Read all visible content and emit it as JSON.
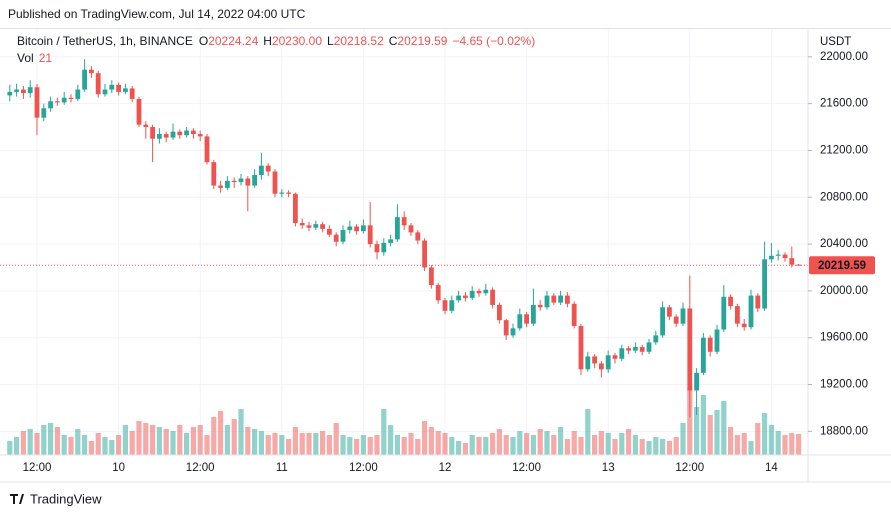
{
  "chart_data": {
    "type": "candlestick",
    "published": "Published on TradingView.com, Jul 14, 2022 04:00 UTC",
    "symbol": "Bitcoin / TetherUS, 1h, BINANCE",
    "legend": [
      {
        "key": "O",
        "text": "20224.24"
      },
      {
        "key": "H",
        "text": "20230.00"
      },
      {
        "key": "L",
        "text": "20218.52"
      },
      {
        "key": "C",
        "text": "20219.59"
      }
    ],
    "change": "−4.65 (−0.02%)",
    "volume_label": "Vol",
    "axis_unit": "USDT",
    "brand": "TradingView",
    "up_color": "#26a69a",
    "down_color": "#ef5350",
    "grid": true,
    "categories": [
      null,
      null,
      null,
      null,
      "12:00",
      null,
      null,
      null,
      null,
      null,
      null,
      null,
      null,
      null,
      null,
      null,
      "10",
      null,
      null,
      null,
      null,
      null,
      null,
      null,
      null,
      null,
      null,
      null,
      "12:00",
      null,
      null,
      null,
      null,
      null,
      null,
      null,
      null,
      null,
      null,
      null,
      "11",
      null,
      null,
      null,
      null,
      null,
      null,
      null,
      null,
      null,
      null,
      null,
      "12:00",
      null,
      null,
      null,
      null,
      null,
      null,
      null,
      null,
      null,
      null,
      null,
      "12",
      null,
      null,
      null,
      null,
      null,
      null,
      null,
      null,
      null,
      null,
      null,
      "12:00",
      null,
      null,
      null,
      null,
      null,
      null,
      null,
      null,
      null,
      null,
      null,
      "13",
      null,
      null,
      null,
      null,
      null,
      null,
      null,
      null,
      null,
      null,
      null,
      "12:00",
      null,
      null,
      null,
      null,
      null,
      null,
      null,
      null,
      null,
      null,
      null,
      "14",
      null,
      null,
      null,
      null
    ],
    "open": [
      21670,
      21700,
      21720,
      21690,
      21740,
      21480,
      21560,
      21620,
      21610,
      21650,
      21640,
      21720,
      21890,
      21860,
      21680,
      21720,
      21760,
      21700,
      21730,
      21640,
      21420,
      21400,
      21300,
      21340,
      21310,
      21360,
      21330,
      21370,
      21340,
      21320,
      21100,
      20900,
      20880,
      20940,
      20930,
      20960,
      20900,
      20990,
      21070,
      21020,
      20830,
      20840,
      20830,
      20580,
      20560,
      20540,
      20570,
      20530,
      20480,
      20420,
      20520,
      20550,
      20510,
      20560,
      20400,
      20330,
      20410,
      20440,
      20630,
      20560,
      20500,
      20430,
      20200,
      20050,
      19920,
      19830,
      19920,
      19960,
      19940,
      20000,
      19980,
      20010,
      19880,
      19750,
      19620,
      19680,
      19800,
      19720,
      19880,
      19860,
      19960,
      19900,
      19960,
      19890,
      19700,
      19330,
      19440,
      19380,
      19330,
      19450,
      19420,
      19510,
      19490,
      19520,
      19480,
      19560,
      19620,
      19860,
      19780,
      19720,
      19850,
      19150,
      19300,
      19600,
      19480,
      19670,
      19950,
      19870,
      19720,
      19690,
      19960,
      19850,
      20270,
      20300,
      20310,
      20280,
      20224.24
    ],
    "high": [
      21760,
      21770,
      21750,
      21800,
      21770,
      21600,
      21660,
      21650,
      21700,
      21680,
      21760,
      21980,
      21920,
      21880,
      21770,
      21800,
      21780,
      21770,
      21750,
      21660,
      21450,
      21420,
      21390,
      21360,
      21430,
      21380,
      21400,
      21390,
      21370,
      21340,
      21120,
      20940,
      20980,
      20970,
      21000,
      20980,
      21040,
      21180,
      21090,
      21040,
      20870,
      20860,
      20840,
      20620,
      20590,
      20600,
      20590,
      20560,
      20500,
      20560,
      20600,
      20570,
      20610,
      20760,
      20430,
      20450,
      20480,
      20740,
      20680,
      20580,
      20520,
      20450,
      20220,
      20070,
      19940,
      19960,
      20000,
      19990,
      20040,
      20020,
      20060,
      20030,
      19900,
      19760,
      19720,
      19850,
      19820,
      20020,
      19920,
      20000,
      19980,
      20000,
      19990,
      19910,
      19720,
      19480,
      19460,
      19400,
      19490,
      19470,
      19540,
      19530,
      19560,
      19540,
      19590,
      19660,
      19910,
      19880,
      19800,
      19900,
      20130,
      19340,
      19640,
      19620,
      19710,
      20050,
      19970,
      19890,
      19760,
      20010,
      19980,
      20420,
      20410,
      20350,
      20330,
      20380,
      20230
    ],
    "low": [
      21620,
      21660,
      21640,
      21650,
      21330,
      21450,
      21530,
      21580,
      21590,
      21610,
      21620,
      21700,
      21820,
      21650,
      21660,
      21690,
      21670,
      21680,
      21610,
      21400,
      21300,
      21100,
      21260,
      21270,
      21290,
      21300,
      21310,
      21300,
      21280,
      21080,
      20870,
      20840,
      20860,
      20880,
      20900,
      20680,
      20880,
      20950,
      20980,
      20800,
      20800,
      20800,
      20550,
      20530,
      20510,
      20520,
      20500,
      20460,
      20380,
      20400,
      20490,
      20480,
      20490,
      20370,
      20270,
      20300,
      20380,
      20420,
      20520,
      20470,
      20400,
      20170,
      20020,
      19890,
      19800,
      19810,
      19900,
      19910,
      19920,
      19950,
      19960,
      19850,
      19720,
      19580,
      19600,
      19660,
      19690,
      19700,
      19830,
      19840,
      19880,
      19880,
      19860,
      19680,
      19280,
      19310,
      19340,
      19260,
      19300,
      19380,
      19400,
      19460,
      19470,
      19450,
      19460,
      19540,
      19600,
      19750,
      19690,
      19700,
      18920,
      18940,
      19280,
      19440,
      19460,
      19650,
      19840,
      19690,
      19660,
      19670,
      19820,
      19830,
      20240,
      20260,
      20250,
      20200,
      20218.52
    ],
    "close": [
      21700,
      21720,
      21690,
      21740,
      21480,
      21560,
      21620,
      21610,
      21650,
      21640,
      21720,
      21890,
      21860,
      21680,
      21720,
      21760,
      21700,
      21730,
      21640,
      21420,
      21400,
      21300,
      21340,
      21310,
      21360,
      21330,
      21370,
      21340,
      21320,
      21100,
      20900,
      20880,
      20940,
      20930,
      20960,
      20900,
      20990,
      21070,
      21020,
      20830,
      20840,
      20830,
      20580,
      20560,
      20540,
      20570,
      20530,
      20480,
      20420,
      20520,
      20550,
      20510,
      20560,
      20400,
      20330,
      20410,
      20440,
      20630,
      20560,
      20500,
      20430,
      20200,
      20050,
      19920,
      19830,
      19920,
      19960,
      19940,
      20000,
      19980,
      20010,
      19880,
      19750,
      19620,
      19680,
      19800,
      19720,
      19880,
      19860,
      19960,
      19900,
      19960,
      19890,
      19700,
      19330,
      19440,
      19380,
      19330,
      19450,
      19420,
      19510,
      19490,
      19520,
      19480,
      19560,
      19620,
      19860,
      19780,
      19720,
      19850,
      19150,
      19300,
      19600,
      19480,
      19670,
      19950,
      19870,
      19720,
      19690,
      19960,
      19850,
      20270,
      20300,
      20310,
      20280,
      20224.24,
      20219.59
    ],
    "volume": [
      14,
      18,
      24,
      26,
      22,
      30,
      32,
      28,
      20,
      18,
      26,
      20,
      14,
      22,
      18,
      15,
      20,
      30,
      24,
      34,
      32,
      30,
      28,
      26,
      24,
      30,
      22,
      28,
      30,
      20,
      38,
      44,
      30,
      36,
      46,
      28,
      26,
      24,
      20,
      22,
      20,
      16,
      28,
      22,
      22,
      22,
      24,
      20,
      32,
      20,
      18,
      16,
      20,
      18,
      20,
      46,
      30,
      20,
      18,
      22,
      16,
      34,
      28,
      24,
      22,
      18,
      14,
      12,
      20,
      18,
      18,
      22,
      26,
      20,
      18,
      24,
      22,
      20,
      26,
      24,
      20,
      28,
      16,
      24,
      18,
      46,
      20,
      24,
      22,
      16,
      22,
      26,
      20,
      16,
      14,
      18,
      16,
      14,
      18,
      32,
      67,
      48,
      60,
      40,
      45,
      54,
      28,
      20,
      22,
      14,
      32,
      42,
      30,
      24,
      20,
      22,
      21
    ],
    "ylim": [
      18598,
      22246
    ],
    "yticks": [
      {
        "value": 22000,
        "label": "22000.00"
      },
      {
        "value": 21600,
        "label": "21600.00"
      },
      {
        "value": 21200,
        "label": "21200.00"
      },
      {
        "value": 20800,
        "label": "20800.00"
      },
      {
        "value": 20400,
        "label": "20400.00"
      },
      {
        "value": 20000,
        "label": "20000.00"
      },
      {
        "value": 19600,
        "label": "19600.00"
      },
      {
        "value": 19200,
        "label": "19200.00"
      },
      {
        "value": 18800,
        "label": "18800.00"
      }
    ]
  }
}
